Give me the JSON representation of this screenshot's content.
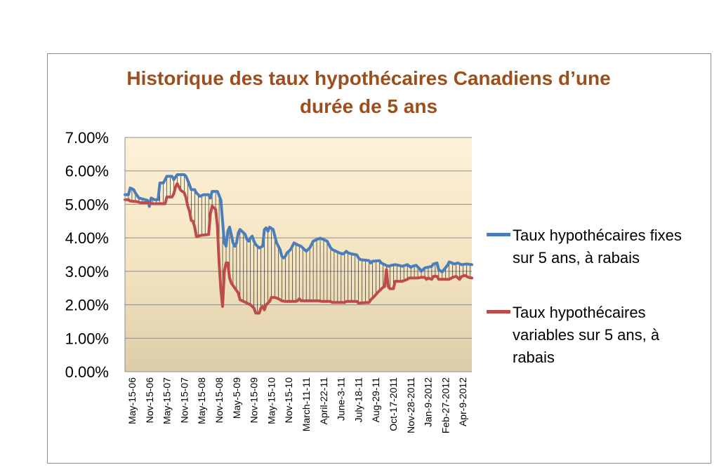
{
  "chart_data": {
    "type": "line",
    "title": "Historique des taux hypothécaires Canadiens d’une durée de 5 ans",
    "title_lines": [
      "Historique des taux hypothécaires Canadiens d’une",
      "durée de 5 ans"
    ],
    "title_color": "#9c4f1e",
    "y_ticks": [
      "7.00%",
      "6.00%",
      "5.00%",
      "4.00%",
      "3.00%",
      "2.00%",
      "1.00%",
      "0.00%"
    ],
    "ylim": [
      0,
      0.07
    ],
    "grid": true,
    "legend_position": "right",
    "x_tick_labels": [
      "May-15-06",
      "Nov-15-06",
      "May-15-07",
      "Nov-15-07",
      "May-15-08",
      "Nov-15-08",
      "May-5-09",
      "Nov-15-09",
      "May-15-10",
      "Nov-15-10",
      "March-11-11",
      "April-22-11",
      "June-3-11",
      "July-18-11",
      "Aug-29-11",
      "Oct-17-2011",
      "Nov-28-2011",
      "Jan-9-2012",
      "Feb-27-2012",
      "Apr-9-2012"
    ],
    "point_count": 200,
    "series": [
      {
        "name": "Taux hypothécaires fixes sur 5 ans, à rabais",
        "legend_lines": [
          "Taux hypothécaires fixes",
          "sur 5 ans, à rabais"
        ],
        "color": "#4a7ebb",
        "keypoints": [
          [
            0,
            0.0529
          ],
          [
            2,
            0.0529
          ],
          [
            3,
            0.0549
          ],
          [
            5,
            0.0544
          ],
          [
            6,
            0.0534
          ],
          [
            8,
            0.0519
          ],
          [
            13,
            0.0512
          ],
          [
            14,
            0.0494
          ],
          [
            15,
            0.0519
          ],
          [
            17,
            0.0514
          ],
          [
            19,
            0.0514
          ],
          [
            20,
            0.0564
          ],
          [
            22,
            0.0564
          ],
          [
            23,
            0.0574
          ],
          [
            24,
            0.0584
          ],
          [
            27,
            0.0584
          ],
          [
            28,
            0.0574
          ],
          [
            30,
            0.0589
          ],
          [
            34,
            0.0589
          ],
          [
            35,
            0.0584
          ],
          [
            37,
            0.0559
          ],
          [
            38,
            0.0544
          ],
          [
            40,
            0.0544
          ],
          [
            41,
            0.0534
          ],
          [
            43,
            0.0524
          ],
          [
            45,
            0.0529
          ],
          [
            48,
            0.0529
          ],
          [
            49,
            0.0519
          ],
          [
            50,
            0.0539
          ],
          [
            53,
            0.0539
          ],
          [
            55,
            0.0514
          ],
          [
            56,
            0.0449
          ],
          [
            57,
            0.0385
          ],
          [
            58,
            0.0375
          ],
          [
            59,
            0.042
          ],
          [
            60,
            0.0432
          ],
          [
            61,
            0.041
          ],
          [
            62,
            0.0385
          ],
          [
            63,
            0.0375
          ],
          [
            64,
            0.0385
          ],
          [
            65,
            0.0415
          ],
          [
            66,
            0.0425
          ],
          [
            67,
            0.042
          ],
          [
            69,
            0.041
          ],
          [
            70,
            0.0395
          ],
          [
            71,
            0.039
          ],
          [
            72,
            0.04
          ],
          [
            73,
            0.0405
          ],
          [
            74,
            0.039
          ],
          [
            75,
            0.038
          ],
          [
            76,
            0.0375
          ],
          [
            77,
            0.037
          ],
          [
            79,
            0.0375
          ],
          [
            80,
            0.0425
          ],
          [
            81,
            0.043
          ],
          [
            82,
            0.042
          ],
          [
            83,
            0.0432
          ],
          [
            85,
            0.0425
          ],
          [
            86,
            0.0405
          ],
          [
            87,
            0.0385
          ],
          [
            89,
            0.0365
          ],
          [
            90,
            0.0345
          ],
          [
            91,
            0.034
          ],
          [
            92,
            0.0345
          ],
          [
            93,
            0.0355
          ],
          [
            95,
            0.0365
          ],
          [
            96,
            0.0375
          ],
          [
            97,
            0.0385
          ],
          [
            99,
            0.0379
          ],
          [
            101,
            0.0375
          ],
          [
            103,
            0.0365
          ],
          [
            104,
            0.036
          ],
          [
            106,
            0.037
          ],
          [
            107,
            0.038
          ],
          [
            108,
            0.039
          ],
          [
            110,
            0.0395
          ],
          [
            112,
            0.0399
          ],
          [
            114,
            0.0395
          ],
          [
            116,
            0.039
          ],
          [
            117,
            0.038
          ],
          [
            118,
            0.037
          ],
          [
            119,
            0.0365
          ],
          [
            121,
            0.036
          ],
          [
            123,
            0.0355
          ],
          [
            125,
            0.0352
          ],
          [
            126,
            0.0355
          ],
          [
            127,
            0.036
          ],
          [
            128,
            0.0355
          ],
          [
            130,
            0.0352
          ],
          [
            133,
            0.0349
          ],
          [
            134,
            0.034
          ],
          [
            135,
            0.0335
          ],
          [
            140,
            0.0332
          ],
          [
            141,
            0.0325
          ],
          [
            142,
            0.033
          ],
          [
            146,
            0.0332
          ],
          [
            147,
            0.0325
          ],
          [
            149,
            0.032
          ],
          [
            151,
            0.0315
          ],
          [
            153,
            0.0318
          ],
          [
            155,
            0.032
          ],
          [
            157,
            0.0318
          ],
          [
            159,
            0.0315
          ],
          [
            162,
            0.032
          ],
          [
            164,
            0.0312
          ],
          [
            165,
            0.0315
          ],
          [
            167,
            0.0318
          ],
          [
            169,
            0.0308
          ],
          [
            170,
            0.03
          ],
          [
            172,
            0.031
          ],
          [
            176,
            0.0315
          ],
          [
            177,
            0.0322
          ],
          [
            179,
            0.0325
          ],
          [
            180,
            0.0305
          ],
          [
            182,
            0.0298
          ],
          [
            183,
            0.0305
          ],
          [
            185,
            0.0318
          ],
          [
            186,
            0.0328
          ],
          [
            189,
            0.0322
          ],
          [
            191,
            0.0325
          ],
          [
            193,
            0.032
          ],
          [
            196,
            0.0322
          ],
          [
            199,
            0.032
          ]
        ]
      },
      {
        "name": "Taux hypothécaires variables sur 5 ans, à rabais",
        "legend_lines": [
          "Taux hypothécaires",
          "variables sur 5 ans, à",
          "rabais"
        ],
        "color": "#be4b48",
        "keypoints": [
          [
            0,
            0.0514
          ],
          [
            2,
            0.0514
          ],
          [
            3,
            0.051
          ],
          [
            7,
            0.0508
          ],
          [
            9,
            0.0505
          ],
          [
            14,
            0.0505
          ],
          [
            15,
            0.0502
          ],
          [
            20,
            0.0502
          ],
          [
            23,
            0.0502
          ],
          [
            24,
            0.0522
          ],
          [
            27,
            0.0522
          ],
          [
            28,
            0.0532
          ],
          [
            29,
            0.0552
          ],
          [
            30,
            0.0562
          ],
          [
            31,
            0.0552
          ],
          [
            32,
            0.0542
          ],
          [
            34,
            0.0535
          ],
          [
            35,
            0.052
          ],
          [
            36,
            0.0495
          ],
          [
            37,
            0.048
          ],
          [
            38,
            0.0452
          ],
          [
            39,
            0.045
          ],
          [
            40,
            0.0432
          ],
          [
            41,
            0.0404
          ],
          [
            42,
            0.0405
          ],
          [
            44,
            0.0408
          ],
          [
            46,
            0.0409
          ],
          [
            48,
            0.041
          ],
          [
            49,
            0.0472
          ],
          [
            50,
            0.0495
          ],
          [
            52,
            0.0485
          ],
          [
            53,
            0.0435
          ],
          [
            54,
            0.0325
          ],
          [
            55,
            0.0245
          ],
          [
            56,
            0.0195
          ],
          [
            57,
            0.03
          ],
          [
            58,
            0.0325
          ],
          [
            59,
            0.0325
          ],
          [
            60,
            0.028
          ],
          [
            61,
            0.0265
          ],
          [
            63,
            0.025
          ],
          [
            65,
            0.0235
          ],
          [
            66,
            0.0215
          ],
          [
            68,
            0.021
          ],
          [
            70,
            0.0205
          ],
          [
            72,
            0.02
          ],
          [
            74,
            0.019
          ],
          [
            75,
            0.0175
          ],
          [
            77,
            0.0175
          ],
          [
            78,
            0.019
          ],
          [
            79,
            0.0195
          ],
          [
            80,
            0.0185
          ],
          [
            81,
            0.02
          ],
          [
            83,
            0.021
          ],
          [
            84,
            0.0222
          ],
          [
            86,
            0.0222
          ],
          [
            88,
            0.0218
          ],
          [
            90,
            0.0212
          ],
          [
            92,
            0.021
          ],
          [
            98,
            0.021
          ],
          [
            99,
            0.0212
          ],
          [
            100,
            0.0218
          ],
          [
            101,
            0.0212
          ],
          [
            111,
            0.0212
          ],
          [
            113,
            0.021
          ],
          [
            118,
            0.021
          ],
          [
            119,
            0.0207
          ],
          [
            126,
            0.0207
          ],
          [
            127,
            0.021
          ],
          [
            133,
            0.021
          ],
          [
            134,
            0.0205
          ],
          [
            140,
            0.0207
          ],
          [
            141,
            0.0215
          ],
          [
            143,
            0.0225
          ],
          [
            145,
            0.0237
          ],
          [
            147,
            0.0247
          ],
          [
            148,
            0.0252
          ],
          [
            149,
            0.0255
          ],
          [
            150,
            0.0305
          ],
          [
            151,
            0.0255
          ],
          [
            152,
            0.0248
          ],
          [
            154,
            0.0248
          ],
          [
            155,
            0.027
          ],
          [
            159,
            0.027
          ],
          [
            160,
            0.0272
          ],
          [
            162,
            0.0276
          ],
          [
            163,
            0.028
          ],
          [
            168,
            0.028
          ],
          [
            170,
            0.0282
          ],
          [
            172,
            0.0282
          ],
          [
            173,
            0.0276
          ],
          [
            174,
            0.028
          ],
          [
            176,
            0.0276
          ],
          [
            177,
            0.0285
          ],
          [
            179,
            0.0285
          ],
          [
            180,
            0.0276
          ],
          [
            186,
            0.0276
          ],
          [
            188,
            0.0282
          ],
          [
            190,
            0.0285
          ],
          [
            192,
            0.0276
          ],
          [
            193,
            0.0284
          ],
          [
            195,
            0.0288
          ],
          [
            197,
            0.0282
          ],
          [
            199,
            0.028
          ]
        ]
      }
    ]
  }
}
